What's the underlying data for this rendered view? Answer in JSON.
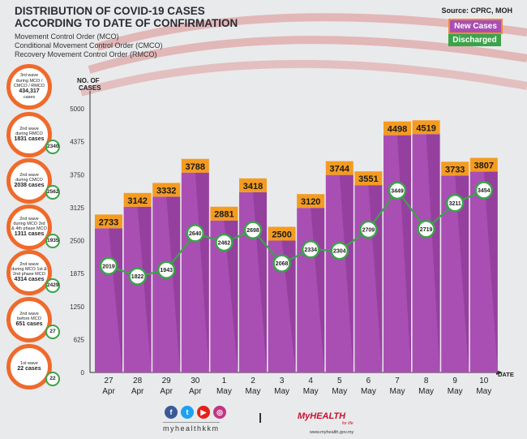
{
  "header": {
    "title_line1": "DISTRIBUTION OF COVID-19 CASES",
    "title_line2": "ACCORDING TO DATE OF CONFIRMATION",
    "sub1": "Movement Control Order (MCO)",
    "sub2": "Conditional Movement Control Order (CMCO)",
    "sub3": "Recovery Movement Control Order (RMCO)",
    "source": "Source: CPRC, MOH"
  },
  "legend": {
    "new_cases": "New Cases",
    "discharged": "Discharged"
  },
  "colors": {
    "bar": "#a94fb3",
    "bar_dark": "#7d2f88",
    "label_bg": "#f49b21",
    "line": "#3ba34a",
    "wave_ring": "#ef6a2b",
    "flag_stripe": "#dc8c8c"
  },
  "waves": [
    {
      "l1": "3rd wave",
      "l2": "during MCO /",
      "l3": "CMCO / RMCO",
      "l4": "434,317",
      "l5": "cases",
      "badge": ""
    },
    {
      "l1": "2nd wave",
      "l2": "during RMCO",
      "l3": "",
      "l4": "1831 cases",
      "l5": "",
      "badge": "2340"
    },
    {
      "l1": "2nd wave",
      "l2": "during CMCO",
      "l3": "",
      "l4": "2038 cases",
      "l5": "",
      "badge": "2562"
    },
    {
      "l1": "2nd wave",
      "l2": "during MCO 3rd",
      "l3": "& 4th phase MCO",
      "l4": "1311 cases",
      "l5": "",
      "badge": "1935"
    },
    {
      "l1": "2nd wave",
      "l2": "during MCO 1st &",
      "l3": "2nd phase MCO",
      "l4": "4314 cases",
      "l5": "",
      "badge": "2429"
    },
    {
      "l1": "2nd wave",
      "l2": "before MCO",
      "l3": "",
      "l4": "651 cases",
      "l5": "",
      "badge": "27"
    },
    {
      "l1": "1st wave",
      "l2": "",
      "l3": "",
      "l4": "22 cases",
      "l5": "",
      "badge": "22"
    }
  ],
  "chart_data": {
    "type": "bar",
    "ylabel_line1": "NO. OF",
    "ylabel_line2": "CASES",
    "xlabel": "DATE",
    "ylim": [
      0,
      5000
    ],
    "yticks": [
      0,
      625,
      1250,
      1875,
      2500,
      3125,
      3750,
      4375,
      5000
    ],
    "categories": [
      {
        "day": "27",
        "month": "Apr"
      },
      {
        "day": "28",
        "month": "Apr"
      },
      {
        "day": "29",
        "month": "Apr"
      },
      {
        "day": "30",
        "month": "Apr"
      },
      {
        "day": "1",
        "month": "May"
      },
      {
        "day": "2",
        "month": "May"
      },
      {
        "day": "3",
        "month": "May"
      },
      {
        "day": "4",
        "month": "May"
      },
      {
        "day": "5",
        "month": "May"
      },
      {
        "day": "6",
        "month": "May"
      },
      {
        "day": "7",
        "month": "May"
      },
      {
        "day": "8",
        "month": "May"
      },
      {
        "day": "9",
        "month": "May"
      },
      {
        "day": "10",
        "month": "May"
      }
    ],
    "series": [
      {
        "name": "New Cases",
        "values": [
          2733,
          3142,
          3332,
          3788,
          2881,
          3418,
          2500,
          3120,
          3744,
          3551,
          4498,
          4519,
          3733,
          3807
        ]
      },
      {
        "name": "Discharged",
        "values": [
          2019,
          1822,
          1943,
          2640,
          2462,
          2698,
          2068,
          2334,
          2304,
          2709,
          3449,
          2719,
          3211,
          3454
        ]
      }
    ]
  },
  "footer": {
    "handle": "myhealthkkm",
    "social": [
      "f",
      "t",
      "▶",
      "◎"
    ],
    "logo_main": "MyHEALTH",
    "logo_sub": "for life",
    "logo_url": "www.myhealth.gov.my"
  }
}
